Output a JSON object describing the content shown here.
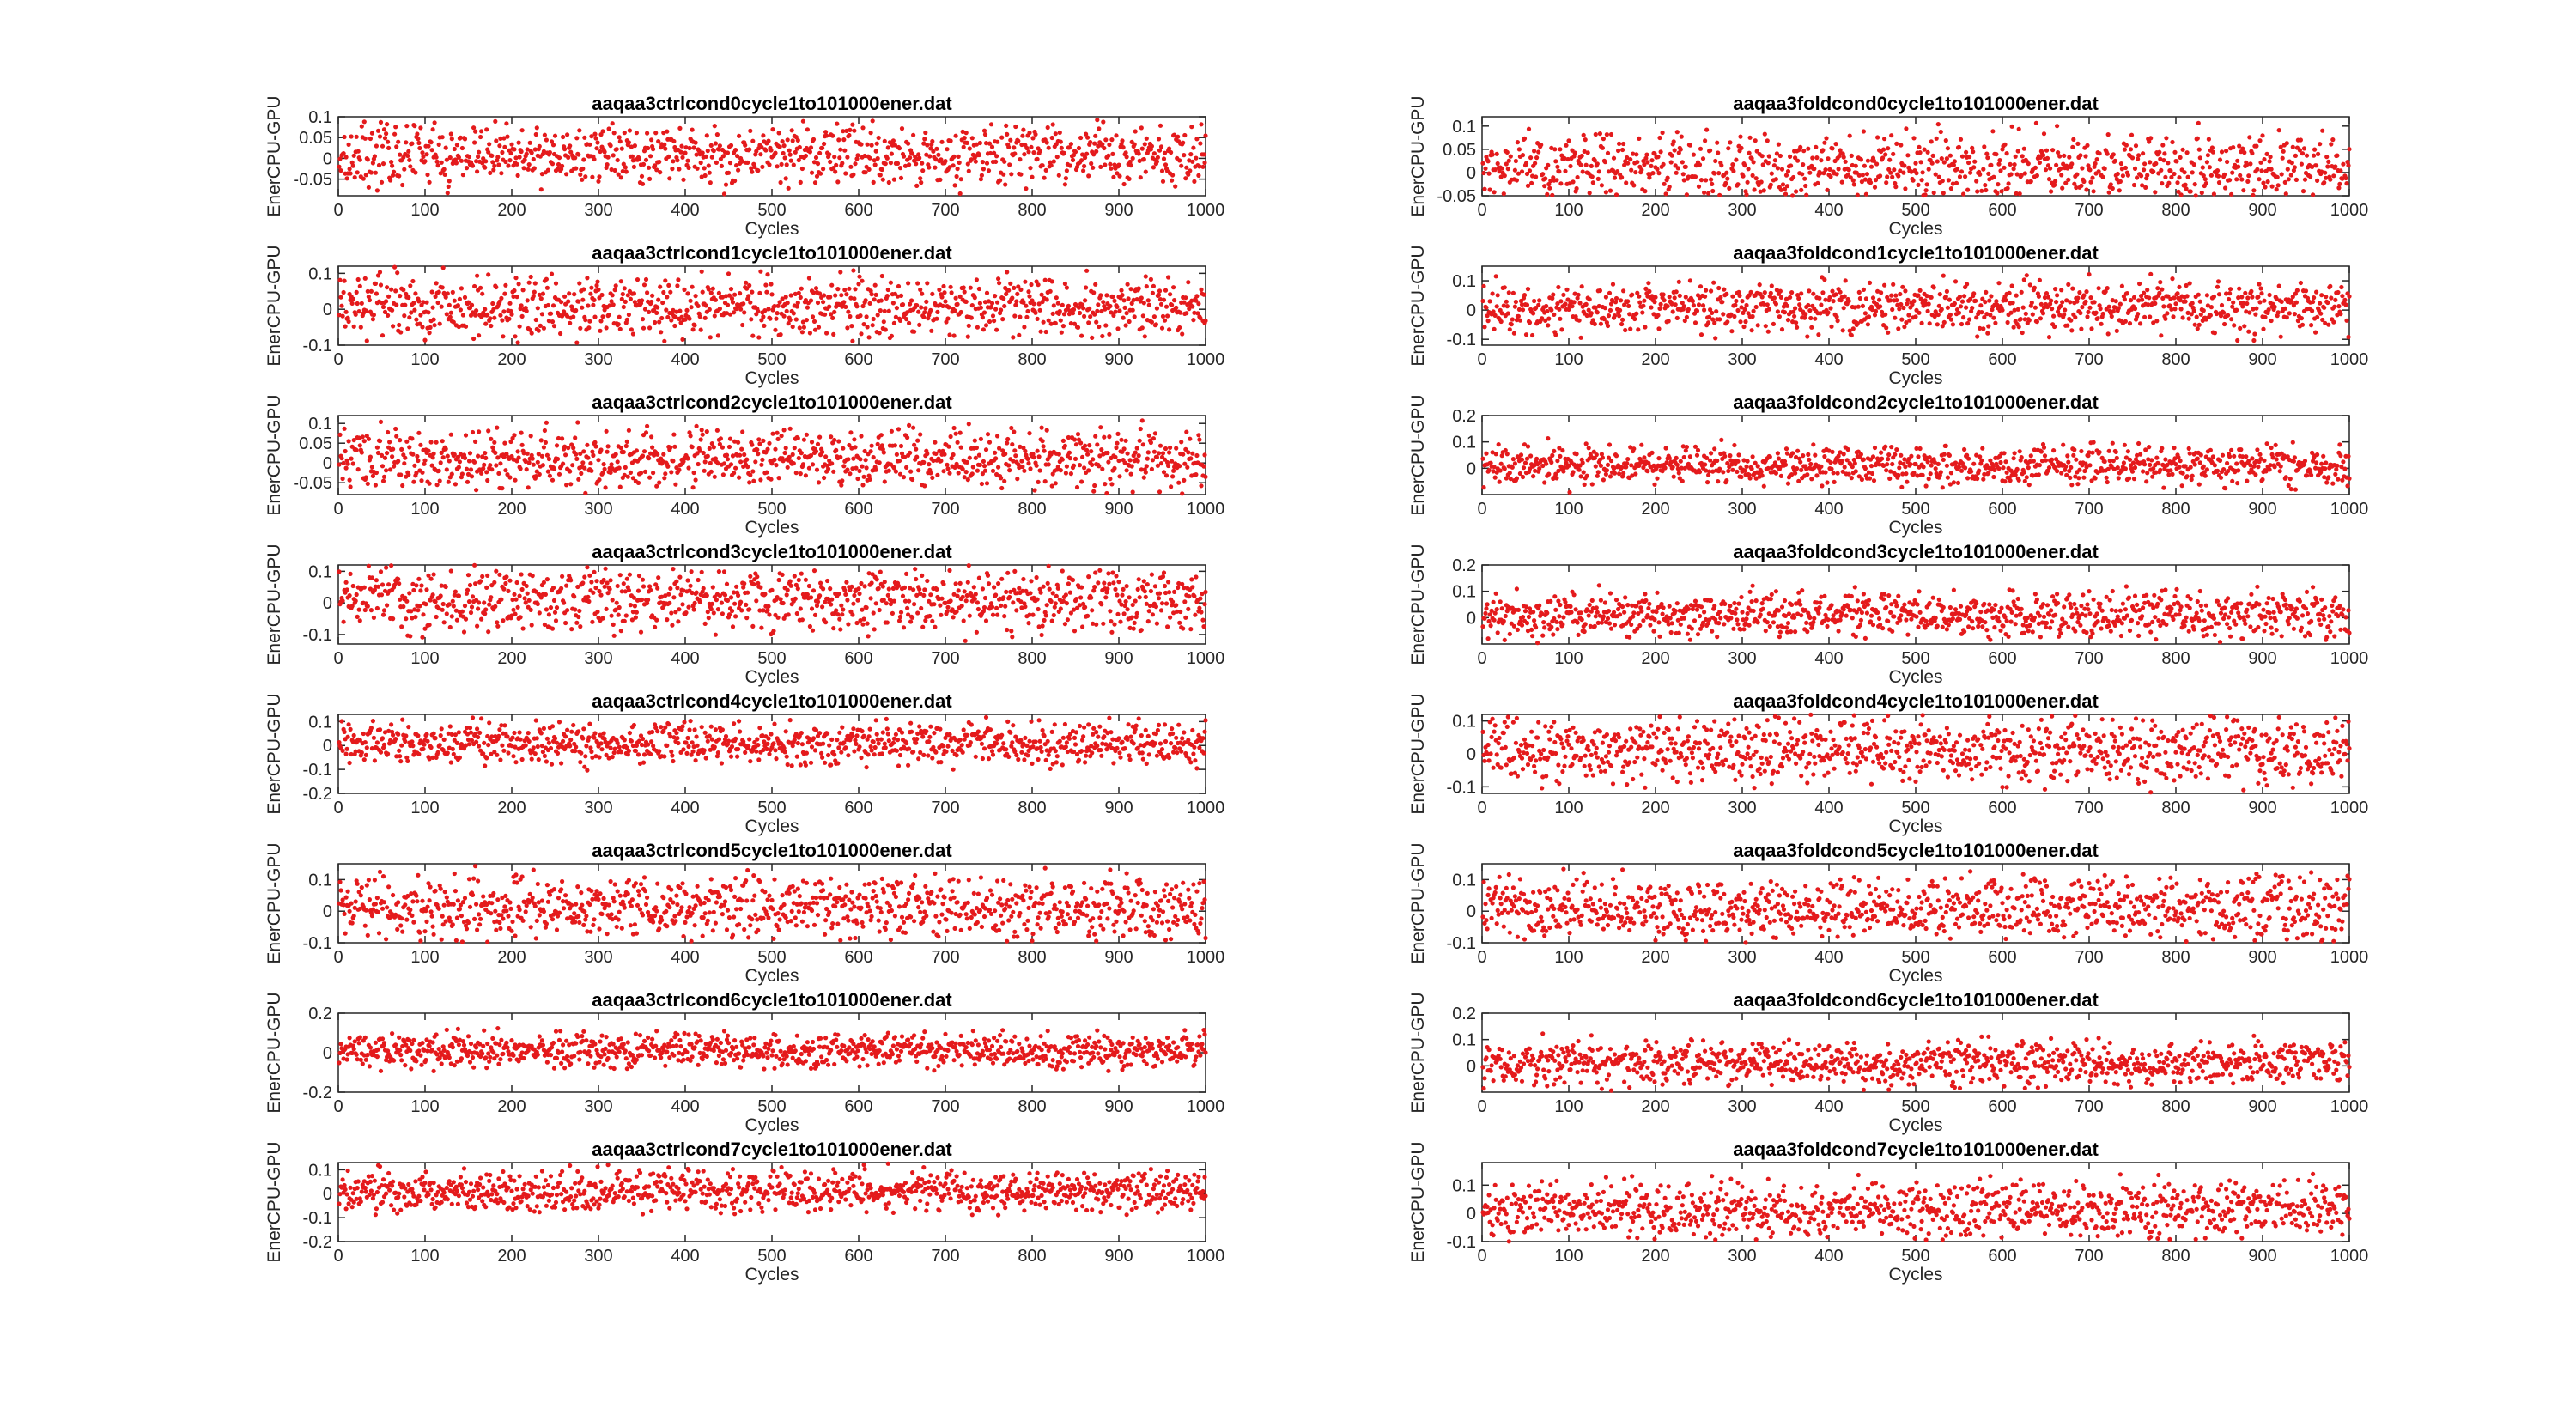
{
  "chart_data": [
    {
      "type": "scatter",
      "title": "aaqaa3ctrlcond0cycle1to101000ener.dat",
      "xlabel": "Cycles",
      "ylabel": "EnerCPU-GPU",
      "xlim": [
        0,
        1000
      ],
      "ylim": [
        -0.09,
        0.1
      ],
      "xticks": [
        "0",
        "100",
        "200",
        "300",
        "400",
        "500",
        "600",
        "700",
        "800",
        "900",
        "1000"
      ],
      "yticks": [
        0.1,
        0.05,
        0,
        -0.05
      ],
      "ytick_labels": [
        "0.1",
        "0.05",
        "0",
        "-0.05"
      ],
      "spread": 0.03,
      "n_points": 1000
    },
    {
      "type": "scatter",
      "title": "aaqaa3foldcond0cycle1to101000ener.dat",
      "xlabel": "Cycles",
      "ylabel": "EnerCPU-GPU",
      "xlim": [
        0,
        1000
      ],
      "ylim": [
        -0.05,
        0.12
      ],
      "xticks": [
        "0",
        "100",
        "200",
        "300",
        "400",
        "500",
        "600",
        "700",
        "800",
        "900",
        "1000"
      ],
      "yticks": [
        0.1,
        0.05,
        0,
        -0.05
      ],
      "ytick_labels": [
        "0.1",
        "0.05",
        "0",
        "-0.05"
      ],
      "spread": 0.03,
      "n_points": 1000
    },
    {
      "type": "scatter",
      "title": "aaqaa3ctrlcond1cycle1to101000ener.dat",
      "xlabel": "Cycles",
      "ylabel": "EnerCPU-GPU",
      "xlim": [
        0,
        1000
      ],
      "ylim": [
        -0.1,
        0.12
      ],
      "xticks": [
        "0",
        "100",
        "200",
        "300",
        "400",
        "500",
        "600",
        "700",
        "800",
        "900",
        "1000"
      ],
      "yticks": [
        0.1,
        0,
        -0.1
      ],
      "ytick_labels": [
        "0.1",
        "0",
        "-0.1"
      ],
      "spread": 0.035,
      "n_points": 1000
    },
    {
      "type": "scatter",
      "title": "aaqaa3foldcond1cycle1to101000ener.dat",
      "xlabel": "Cycles",
      "ylabel": "EnerCPU-GPU",
      "xlim": [
        0,
        1000
      ],
      "ylim": [
        -0.12,
        0.15
      ],
      "xticks": [
        "0",
        "100",
        "200",
        "300",
        "400",
        "500",
        "600",
        "700",
        "800",
        "900",
        "1000"
      ],
      "yticks": [
        0.1,
        0,
        -0.1
      ],
      "ytick_labels": [
        "0.1",
        "0",
        "-0.1"
      ],
      "spread": 0.035,
      "n_points": 1000
    },
    {
      "type": "scatter",
      "title": "aaqaa3ctrlcond2cycle1to101000ener.dat",
      "xlabel": "Cycles",
      "ylabel": "EnerCPU-GPU",
      "xlim": [
        0,
        1000
      ],
      "ylim": [
        -0.08,
        0.12
      ],
      "xticks": [
        "0",
        "100",
        "200",
        "300",
        "400",
        "500",
        "600",
        "700",
        "800",
        "900",
        "1000"
      ],
      "yticks": [
        0.1,
        0.05,
        0,
        -0.05
      ],
      "ytick_labels": [
        "0.1",
        "0.05",
        "0",
        "-0.05"
      ],
      "spread": 0.03,
      "n_points": 1000
    },
    {
      "type": "scatter",
      "title": "aaqaa3foldcond2cycle1to101000ener.dat",
      "xlabel": "Cycles",
      "ylabel": "EnerCPU-GPU",
      "xlim": [
        0,
        1000
      ],
      "ylim": [
        -0.1,
        0.2
      ],
      "xticks": [
        "0",
        "100",
        "200",
        "300",
        "400",
        "500",
        "600",
        "700",
        "800",
        "900",
        "1000"
      ],
      "yticks": [
        0.2,
        0.1,
        0
      ],
      "ytick_labels": [
        "0.2",
        "0.1",
        "0"
      ],
      "spread": 0.03,
      "n_points": 1000
    },
    {
      "type": "scatter",
      "title": "aaqaa3ctrlcond3cycle1to101000ener.dat",
      "xlabel": "Cycles",
      "ylabel": "EnerCPU-GPU",
      "xlim": [
        0,
        1000
      ],
      "ylim": [
        -0.13,
        0.12
      ],
      "xticks": [
        "0",
        "100",
        "200",
        "300",
        "400",
        "500",
        "600",
        "700",
        "800",
        "900",
        "1000"
      ],
      "yticks": [
        0.1,
        0,
        -0.1
      ],
      "ytick_labels": [
        "0.1",
        "0",
        "-0.1"
      ],
      "spread": 0.04,
      "n_points": 1000
    },
    {
      "type": "scatter",
      "title": "aaqaa3foldcond3cycle1to101000ener.dat",
      "xlabel": "Cycles",
      "ylabel": "EnerCPU-GPU",
      "xlim": [
        0,
        1000
      ],
      "ylim": [
        -0.1,
        0.2
      ],
      "xticks": [
        "0",
        "100",
        "200",
        "300",
        "400",
        "500",
        "600",
        "700",
        "800",
        "900",
        "1000"
      ],
      "yticks": [
        0.2,
        0.1,
        0
      ],
      "ytick_labels": [
        "0.2",
        "0.1",
        "0"
      ],
      "spread": 0.035,
      "n_points": 1000
    },
    {
      "type": "scatter",
      "title": "aaqaa3ctrlcond4cycle1to101000ener.dat",
      "xlabel": "Cycles",
      "ylabel": "EnerCPU-GPU",
      "xlim": [
        0,
        1000
      ],
      "ylim": [
        -0.2,
        0.13
      ],
      "xticks": [
        "0",
        "100",
        "200",
        "300",
        "400",
        "500",
        "600",
        "700",
        "800",
        "900",
        "1000"
      ],
      "yticks": [
        0.1,
        0,
        -0.1,
        -0.2
      ],
      "ytick_labels": [
        "0.1",
        "0",
        "-0.1",
        "-0.2"
      ],
      "spread": 0.035,
      "n_points": 1000
    },
    {
      "type": "scatter",
      "title": "aaqaa3foldcond4cycle1to101000ener.dat",
      "xlabel": "Cycles",
      "ylabel": "EnerCPU-GPU",
      "xlim": [
        0,
        1000
      ],
      "ylim": [
        -0.12,
        0.12
      ],
      "xticks": [
        "0",
        "100",
        "200",
        "300",
        "400",
        "500",
        "600",
        "700",
        "800",
        "900",
        "1000"
      ],
      "yticks": [
        0.1,
        0,
        -0.1
      ],
      "ytick_labels": [
        "0.1",
        "0",
        "-0.1"
      ],
      "spread": 0.04,
      "n_points": 1000
    },
    {
      "type": "scatter",
      "title": "aaqaa3ctrlcond5cycle1to101000ener.dat",
      "xlabel": "Cycles",
      "ylabel": "EnerCPU-GPU",
      "xlim": [
        0,
        1000
      ],
      "ylim": [
        -0.1,
        0.15
      ],
      "xticks": [
        "0",
        "100",
        "200",
        "300",
        "400",
        "500",
        "600",
        "700",
        "800",
        "900",
        "1000"
      ],
      "yticks": [
        0.1,
        0,
        -0.1
      ],
      "ytick_labels": [
        "0.1",
        "0",
        "-0.1"
      ],
      "spread": 0.04,
      "n_points": 1000
    },
    {
      "type": "scatter",
      "title": "aaqaa3foldcond5cycle1to101000ener.dat",
      "xlabel": "Cycles",
      "ylabel": "EnerCPU-GPU",
      "xlim": [
        0,
        1000
      ],
      "ylim": [
        -0.1,
        0.15
      ],
      "xticks": [
        "0",
        "100",
        "200",
        "300",
        "400",
        "500",
        "600",
        "700",
        "800",
        "900",
        "1000"
      ],
      "yticks": [
        0.1,
        0,
        -0.1
      ],
      "ytick_labels": [
        "0.1",
        "0",
        "-0.1"
      ],
      "spread": 0.04,
      "n_points": 1000
    },
    {
      "type": "scatter",
      "title": "aaqaa3ctrlcond6cycle1to101000ener.dat",
      "xlabel": "Cycles",
      "ylabel": "EnerCPU-GPU",
      "xlim": [
        0,
        1000
      ],
      "ylim": [
        -0.2,
        0.2
      ],
      "xticks": [
        "0",
        "100",
        "200",
        "300",
        "400",
        "500",
        "600",
        "700",
        "800",
        "900",
        "1000"
      ],
      "yticks": [
        0.2,
        0,
        -0.2
      ],
      "ytick_labels": [
        "0.2",
        "0",
        "-0.2"
      ],
      "spread": 0.035,
      "n_points": 1000
    },
    {
      "type": "scatter",
      "title": "aaqaa3foldcond6cycle1to101000ener.dat",
      "xlabel": "Cycles",
      "ylabel": "EnerCPU-GPU",
      "xlim": [
        0,
        1000
      ],
      "ylim": [
        -0.1,
        0.2
      ],
      "xticks": [
        "0",
        "100",
        "200",
        "300",
        "400",
        "500",
        "600",
        "700",
        "800",
        "900",
        "1000"
      ],
      "yticks": [
        0.2,
        0.1,
        0
      ],
      "ytick_labels": [
        "0.2",
        "0.1",
        "0"
      ],
      "spread": 0.035,
      "n_points": 1000
    },
    {
      "type": "scatter",
      "title": "aaqaa3ctrlcond7cycle1to101000ener.dat",
      "xlabel": "Cycles",
      "ylabel": "EnerCPU-GPU",
      "xlim": [
        0,
        1000
      ],
      "ylim": [
        -0.2,
        0.13
      ],
      "xticks": [
        "0",
        "100",
        "200",
        "300",
        "400",
        "500",
        "600",
        "700",
        "800",
        "900",
        "1000"
      ],
      "yticks": [
        0.1,
        0,
        -0.1,
        -0.2
      ],
      "ytick_labels": [
        "0.1",
        "0",
        "-0.1",
        "-0.2"
      ],
      "spread": 0.035,
      "n_points": 1000
    },
    {
      "type": "scatter",
      "title": "aaqaa3foldcond7cycle1to101000ener.dat",
      "xlabel": "Cycles",
      "ylabel": "EnerCPU-GPU",
      "xlim": [
        0,
        1000
      ],
      "ylim": [
        -0.1,
        0.18
      ],
      "xticks": [
        "0",
        "100",
        "200",
        "300",
        "400",
        "500",
        "600",
        "700",
        "800",
        "900",
        "1000"
      ],
      "yticks": [
        0.1,
        0,
        -0.1
      ],
      "ytick_labels": [
        "0.1",
        "0",
        "-0.1"
      ],
      "spread": 0.04,
      "n_points": 1000
    }
  ],
  "colors": {
    "marker": "#e41a1c",
    "axes": "#262626",
    "background": "#ffffff"
  }
}
